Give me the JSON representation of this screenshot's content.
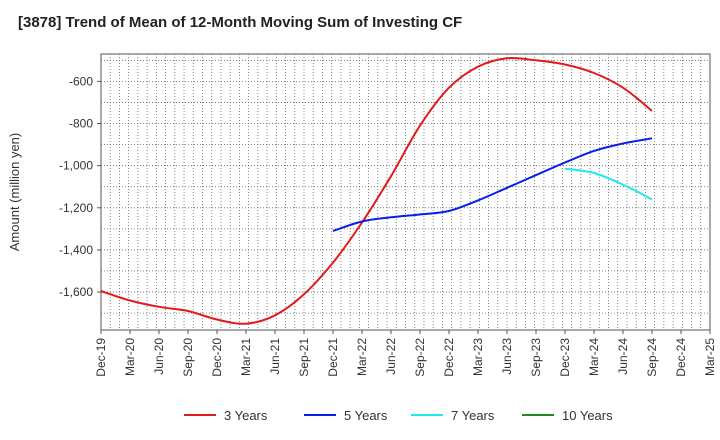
{
  "chart_data": {
    "type": "line",
    "title": "[3878]  Trend of Mean of 12-Month Moving Sum of Investing CF",
    "xlabel": "",
    "ylabel": "Amount (million yen)",
    "ylim": [
      -1780,
      -470
    ],
    "yticks": [
      -1600,
      -1400,
      -1200,
      -1000,
      -800,
      -600
    ],
    "ytick_labels": [
      "-1,600",
      "-1,400",
      "-1,200",
      "-1,000",
      "-800",
      "-600"
    ],
    "categories": [
      "Dec-19",
      "Mar-20",
      "Jun-20",
      "Sep-20",
      "Dec-20",
      "Mar-21",
      "Jun-21",
      "Sep-21",
      "Dec-21",
      "Mar-22",
      "Jun-22",
      "Sep-22",
      "Dec-22",
      "Mar-23",
      "Jun-23",
      "Sep-23",
      "Dec-23",
      "Mar-24",
      "Jun-24",
      "Sep-24",
      "Dec-24",
      "Mar-25"
    ],
    "grid": true,
    "legend_position": "bottom",
    "series": [
      {
        "name": "3 Years",
        "color": "#e31a1c",
        "values": [
          -1595,
          -1640,
          -1670,
          -1690,
          -1730,
          -1750,
          -1710,
          -1610,
          -1460,
          -1270,
          -1050,
          -810,
          -630,
          -530,
          -490,
          -500,
          -520,
          -560,
          -630,
          -740,
          null,
          null
        ]
      },
      {
        "name": "5 Years",
        "color": "#0a1ee6",
        "values": [
          null,
          null,
          null,
          null,
          null,
          null,
          null,
          null,
          -1310,
          -1265,
          -1245,
          -1232,
          -1215,
          -1165,
          -1105,
          -1045,
          -985,
          -930,
          -895,
          -870,
          null,
          null
        ]
      },
      {
        "name": "7 Years",
        "color": "#22e6f0",
        "values": [
          null,
          null,
          null,
          null,
          null,
          null,
          null,
          null,
          null,
          null,
          null,
          null,
          null,
          null,
          null,
          null,
          -1015,
          -1035,
          -1090,
          -1160,
          null,
          null
        ]
      },
      {
        "name": "10 Years",
        "color": "#1e8a1e",
        "values": [
          null,
          null,
          null,
          null,
          null,
          null,
          null,
          null,
          null,
          null,
          null,
          null,
          null,
          null,
          null,
          null,
          null,
          null,
          null,
          null,
          null,
          null
        ]
      }
    ]
  }
}
